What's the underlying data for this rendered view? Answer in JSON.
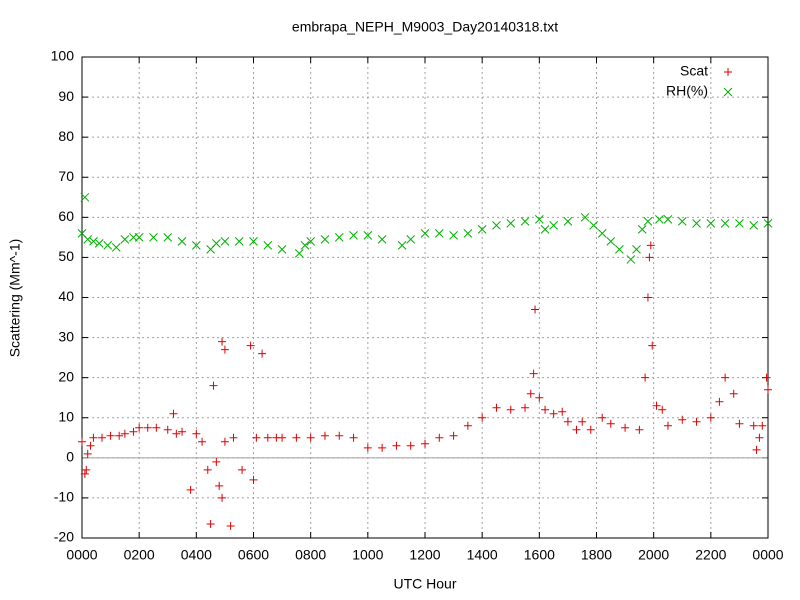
{
  "chart_data": {
    "type": "scatter",
    "title": "embrapa_NEPH_M9003_Day20140318.txt",
    "x_label": "UTC Hour",
    "y_label": "Scattering (Mm^-1)",
    "xlim": [
      0,
      24
    ],
    "xticks": [
      {
        "value": 0,
        "label": "0000"
      },
      {
        "value": 2,
        "label": "0200"
      },
      {
        "value": 4,
        "label": "0400"
      },
      {
        "value": 6,
        "label": "0600"
      },
      {
        "value": 8,
        "label": "0800"
      },
      {
        "value": 10,
        "label": "1000"
      },
      {
        "value": 12,
        "label": "1200"
      },
      {
        "value": 14,
        "label": "1400"
      },
      {
        "value": 16,
        "label": "1600"
      },
      {
        "value": 18,
        "label": "1800"
      },
      {
        "value": 20,
        "label": "2000"
      },
      {
        "value": 22,
        "label": "2200"
      },
      {
        "value": 24,
        "label": "0000"
      }
    ],
    "ylim": [
      -20,
      100
    ],
    "yticks": [
      -20,
      -10,
      0,
      10,
      20,
      30,
      40,
      50,
      60,
      70,
      80,
      90,
      100
    ],
    "grid": true,
    "legend": "top right",
    "series": [
      {
        "name": "Scat",
        "color": "#e00000",
        "marker": "+",
        "x": [
          0.0,
          0.1,
          0.15,
          0.2,
          0.3,
          0.4,
          0.7,
          1.0,
          1.3,
          1.5,
          1.8,
          2.0,
          2.3,
          2.6,
          3.0,
          3.2,
          3.3,
          3.5,
          3.8,
          4.0,
          4.2,
          4.4,
          4.5,
          4.6,
          4.7,
          4.8,
          4.9,
          4.9,
          5.0,
          5.0,
          5.2,
          5.3,
          5.6,
          5.9,
          6.0,
          6.1,
          6.3,
          6.5,
          6.8,
          7.0,
          7.5,
          8.0,
          8.5,
          9.0,
          9.5,
          10.0,
          10.5,
          11.0,
          11.5,
          12.0,
          12.5,
          13.0,
          13.5,
          14.0,
          14.5,
          15.0,
          15.5,
          15.7,
          15.8,
          15.85,
          16.0,
          16.2,
          16.5,
          16.8,
          17.0,
          17.3,
          17.5,
          17.8,
          18.2,
          18.5,
          19.0,
          19.5,
          19.7,
          19.8,
          19.85,
          19.9,
          19.95,
          20.1,
          20.3,
          20.5,
          21.0,
          21.5,
          22.0,
          22.3,
          22.5,
          22.8,
          23.0,
          23.5,
          23.6,
          23.7,
          23.8,
          23.95,
          24.0
        ],
        "values": [
          4,
          -4,
          -3,
          1,
          3,
          5,
          5,
          5.5,
          5.5,
          6,
          6.5,
          7.5,
          7.5,
          7.5,
          7,
          11,
          6,
          6.5,
          -8,
          6,
          4,
          -3,
          -16.5,
          18,
          -1,
          -7,
          29,
          -10,
          27,
          4,
          -17,
          5,
          -3,
          28,
          -5.5,
          5,
          26,
          5,
          5,
          5,
          5,
          5,
          5.5,
          5.5,
          5,
          2.5,
          2.5,
          3,
          3,
          3.5,
          5,
          5.5,
          8,
          10,
          12.5,
          12,
          12.5,
          16,
          21,
          37,
          15,
          12,
          11,
          11.5,
          9,
          7,
          9,
          7,
          10,
          8.5,
          7.5,
          7,
          20,
          40,
          50,
          53,
          28,
          13,
          12,
          8,
          9.5,
          9,
          10,
          14,
          20,
          16,
          8.5,
          8,
          2,
          5,
          8,
          20,
          17
        ]
      },
      {
        "name": "RH(%)",
        "color": "#00b000",
        "marker": "x",
        "x": [
          0.0,
          0.1,
          0.2,
          0.4,
          0.6,
          0.9,
          1.2,
          1.5,
          1.8,
          2.0,
          2.5,
          3.0,
          3.5,
          4.0,
          4.5,
          4.7,
          5.0,
          5.5,
          6.0,
          6.5,
          7.0,
          7.6,
          7.8,
          8.0,
          8.5,
          9.0,
          9.5,
          10.0,
          10.5,
          11.2,
          11.5,
          12.0,
          12.5,
          13.0,
          13.5,
          14.0,
          14.5,
          15.0,
          15.5,
          16.0,
          16.2,
          16.5,
          17.0,
          17.6,
          17.9,
          18.2,
          18.5,
          18.8,
          19.2,
          19.4,
          19.6,
          19.8,
          20.2,
          20.5,
          21.0,
          21.5,
          22.0,
          22.5,
          23.0,
          23.5,
          24.0
        ],
        "values": [
          56,
          65,
          54.5,
          54,
          53.5,
          53,
          52.5,
          54.5,
          55,
          55,
          55,
          55,
          54,
          53,
          52,
          53.5,
          54,
          54,
          54,
          53,
          52,
          51,
          53,
          54,
          54.5,
          55,
          55.5,
          55.5,
          54.5,
          53,
          54.5,
          56,
          56,
          55.5,
          56,
          57,
          58,
          58.5,
          59,
          59.5,
          57,
          58,
          59,
          60,
          58,
          56,
          54,
          52,
          49.5,
          52,
          57,
          59,
          59.5,
          59.5,
          59,
          58.5,
          58.5,
          58.5,
          58.5,
          58,
          58.5
        ]
      }
    ]
  }
}
